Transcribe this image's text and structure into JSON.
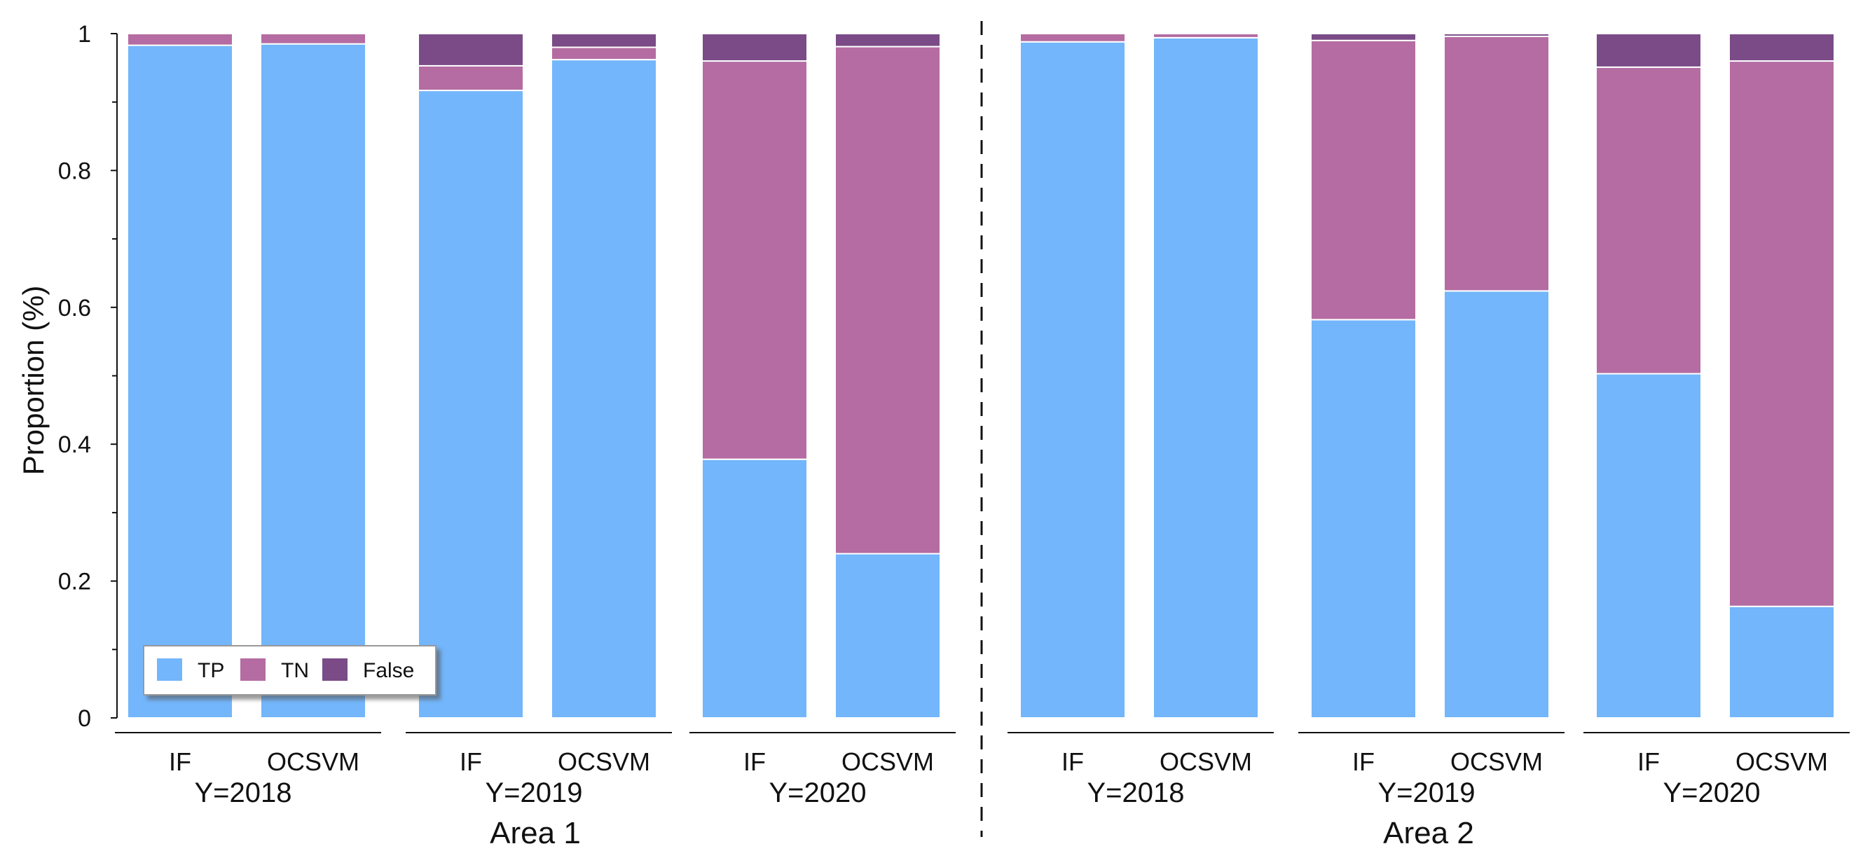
{
  "chart_data": {
    "type": "bar",
    "stacked": true,
    "ylabel": "Proportion (%)",
    "ylim": [
      0,
      1
    ],
    "yticks": [
      "0",
      "0.2",
      "0.4",
      "0.6",
      "0.8",
      "1"
    ],
    "legend": {
      "placement": "bottom-left"
    },
    "series": [
      {
        "name": "TP",
        "color": "#73b6fb"
      },
      {
        "name": "TN",
        "color": "#b46ca2"
      },
      {
        "name": "False",
        "color": "#7a4b87"
      }
    ],
    "areas": [
      {
        "label": "Area 1",
        "years": [
          {
            "label": "Y=2018",
            "bars": [
              {
                "method": "IF",
                "values": [
                  0.983,
                  0.017,
                  0.0
                ]
              },
              {
                "method": "OCSVM",
                "values": [
                  0.985,
                  0.015,
                  0.0
                ]
              }
            ]
          },
          {
            "label": "Y=2019",
            "bars": [
              {
                "method": "IF",
                "values": [
                  0.917,
                  0.036,
                  0.047
                ]
              },
              {
                "method": "OCSVM",
                "values": [
                  0.962,
                  0.018,
                  0.02
                ]
              }
            ]
          },
          {
            "label": "Y=2020",
            "bars": [
              {
                "method": "IF",
                "values": [
                  0.378,
                  0.582,
                  0.04
                ]
              },
              {
                "method": "OCSVM",
                "values": [
                  0.24,
                  0.741,
                  0.019
                ]
              }
            ]
          }
        ]
      },
      {
        "label": "Area 2",
        "years": [
          {
            "label": "Y=2018",
            "bars": [
              {
                "method": "IF",
                "values": [
                  0.988,
                  0.012,
                  0.0
                ]
              },
              {
                "method": "OCSVM",
                "values": [
                  0.994,
                  0.006,
                  0.0
                ]
              }
            ]
          },
          {
            "label": "Y=2019",
            "bars": [
              {
                "method": "IF",
                "values": [
                  0.582,
                  0.408,
                  0.01
                ]
              },
              {
                "method": "OCSVM",
                "values": [
                  0.624,
                  0.372,
                  0.004
                ]
              }
            ]
          },
          {
            "label": "Y=2020",
            "bars": [
              {
                "method": "IF",
                "values": [
                  0.503,
                  0.448,
                  0.049
                ]
              },
              {
                "method": "OCSVM",
                "values": [
                  0.163,
                  0.797,
                  0.04
                ]
              }
            ]
          }
        ]
      }
    ]
  }
}
